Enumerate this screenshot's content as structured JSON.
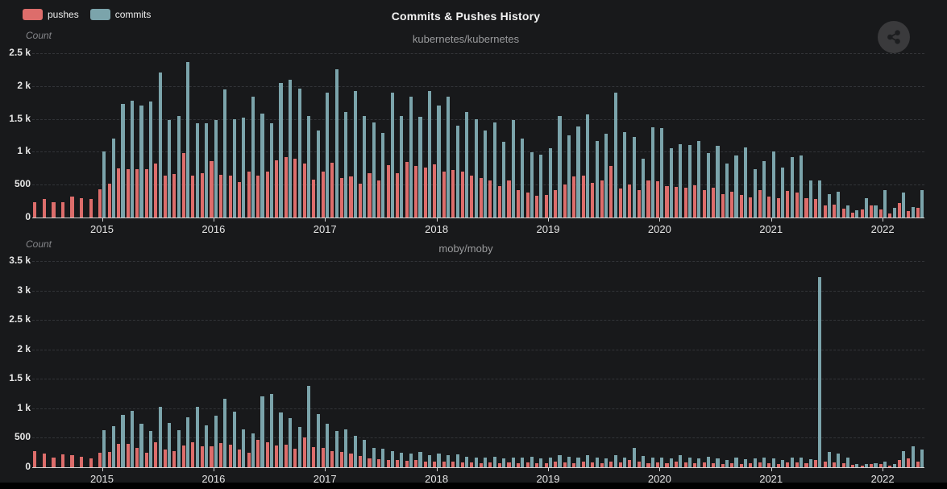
{
  "header": {
    "title": "Commits & Pushes History"
  },
  "legend": {
    "pushes_label": "pushes",
    "commits_label": "commits"
  },
  "colors": {
    "pushes": "#dd6d6b",
    "commits": "#7ba4ab",
    "background": "#18191b",
    "gridline": "#323438",
    "axis": "#cfcfcf"
  },
  "icons": {
    "share": "share-icon"
  },
  "months": [
    "2014-06",
    "2014-07",
    "2014-08",
    "2014-09",
    "2014-10",
    "2014-11",
    "2014-12",
    "2015-01",
    "2015-02",
    "2015-03",
    "2015-04",
    "2015-05",
    "2015-06",
    "2015-07",
    "2015-08",
    "2015-09",
    "2015-10",
    "2015-11",
    "2015-12",
    "2016-01",
    "2016-02",
    "2016-03",
    "2016-04",
    "2016-05",
    "2016-06",
    "2016-07",
    "2016-08",
    "2016-09",
    "2016-10",
    "2016-11",
    "2016-12",
    "2017-01",
    "2017-02",
    "2017-03",
    "2017-04",
    "2017-05",
    "2017-06",
    "2017-07",
    "2017-08",
    "2017-09",
    "2017-10",
    "2017-11",
    "2017-12",
    "2018-01",
    "2018-02",
    "2018-03",
    "2018-04",
    "2018-05",
    "2018-06",
    "2018-07",
    "2018-08",
    "2018-09",
    "2018-10",
    "2018-11",
    "2018-12",
    "2019-01",
    "2019-02",
    "2019-03",
    "2019-04",
    "2019-05",
    "2019-06",
    "2019-07",
    "2019-08",
    "2019-09",
    "2019-10",
    "2019-11",
    "2019-12",
    "2020-01",
    "2020-02",
    "2020-03",
    "2020-04",
    "2020-05",
    "2020-06",
    "2020-07",
    "2020-08",
    "2020-09",
    "2020-10",
    "2020-11",
    "2020-12",
    "2021-01",
    "2021-02",
    "2021-03",
    "2021-04",
    "2021-05",
    "2021-06",
    "2021-07",
    "2021-08",
    "2021-09",
    "2021-10",
    "2021-11",
    "2021-12",
    "2022-01",
    "2022-02",
    "2022-03",
    "2022-04",
    "2022-05"
  ],
  "chart_data": [
    {
      "type": "bar",
      "subtitle": "kubernetes/kubernetes",
      "count_label": "Count",
      "ylabel": "Count",
      "ymax": 2500,
      "yticks": [
        {
          "label": "2.5 k",
          "value": 2500
        },
        {
          "label": "2 k",
          "value": 2000
        },
        {
          "label": "1.5 k",
          "value": 1500
        },
        {
          "label": "1 k",
          "value": 1000
        },
        {
          "label": "500",
          "value": 500
        },
        {
          "label": "0",
          "value": 0
        }
      ],
      "xtick_years": [
        "2015",
        "2016",
        "2017",
        "2018",
        "2019",
        "2020",
        "2021",
        "2022"
      ],
      "legend_position": "top-left",
      "grid": true,
      "series": [
        {
          "name": "pushes",
          "values": [
            230,
            280,
            230,
            230,
            320,
            300,
            280,
            430,
            520,
            750,
            740,
            730,
            730,
            820,
            640,
            660,
            980,
            640,
            670,
            860,
            650,
            640,
            540,
            700,
            640,
            700,
            870,
            920,
            890,
            820,
            580,
            700,
            840,
            600,
            630,
            520,
            670,
            560,
            800,
            670,
            850,
            780,
            760,
            810,
            700,
            720,
            700,
            640,
            600,
            560,
            480,
            560,
            420,
            380,
            330,
            340,
            420,
            500,
            620,
            640,
            530,
            560,
            780,
            440,
            500,
            420,
            560,
            550,
            480,
            470,
            450,
            490,
            420,
            460,
            350,
            390,
            340,
            310,
            420,
            320,
            300,
            400,
            380,
            300,
            280,
            180,
            200,
            140,
            80,
            120,
            180,
            120,
            60,
            220,
            100,
            150
          ]
        },
        {
          "name": "commits",
          "values": [
            0,
            0,
            0,
            0,
            0,
            0,
            0,
            1010,
            1200,
            1730,
            1780,
            1700,
            1770,
            2210,
            1480,
            1540,
            2370,
            1430,
            1440,
            1480,
            1950,
            1500,
            1520,
            1840,
            1580,
            1430,
            2050,
            2100,
            1960,
            1540,
            1320,
            1900,
            2250,
            1600,
            1920,
            1540,
            1450,
            1290,
            1900,
            1550,
            1840,
            1530,
            1920,
            1700,
            1840,
            1400,
            1600,
            1500,
            1330,
            1450,
            1150,
            1480,
            1200,
            990,
            960,
            1060,
            1540,
            1250,
            1390,
            1570,
            1160,
            1270,
            1900,
            1300,
            1230,
            900,
            1370,
            1360,
            1060,
            1120,
            1100,
            1170,
            980,
            1090,
            820,
            950,
            1070,
            730,
            860,
            1010,
            760,
            920,
            940,
            570,
            560,
            350,
            390,
            180,
            110,
            290,
            180,
            420,
            150,
            380,
            160,
            420
          ]
        }
      ]
    },
    {
      "type": "bar",
      "subtitle": "moby/moby",
      "count_label": "Count",
      "ylabel": "Count",
      "ymax": 3500,
      "yticks": [
        {
          "label": "3.5 k",
          "value": 3500
        },
        {
          "label": "3 k",
          "value": 3000
        },
        {
          "label": "2.5 k",
          "value": 2500
        },
        {
          "label": "2 k",
          "value": 2000
        },
        {
          "label": "1.5 k",
          "value": 1500
        },
        {
          "label": "1 k",
          "value": 1000
        },
        {
          "label": "500",
          "value": 500
        },
        {
          "label": "0",
          "value": 0
        }
      ],
      "xtick_years": [
        "2015",
        "2016",
        "2017",
        "2018",
        "2019",
        "2020",
        "2021",
        "2022"
      ],
      "legend_position": "top-left",
      "grid": true,
      "series": [
        {
          "name": "pushes",
          "values": [
            280,
            230,
            170,
            220,
            210,
            180,
            150,
            250,
            260,
            400,
            400,
            330,
            250,
            430,
            300,
            280,
            370,
            420,
            350,
            360,
            410,
            380,
            300,
            250,
            460,
            420,
            370,
            380,
            310,
            510,
            340,
            330,
            280,
            260,
            230,
            190,
            150,
            140,
            130,
            120,
            110,
            120,
            100,
            100,
            90,
            100,
            80,
            80,
            70,
            80,
            70,
            80,
            70,
            80,
            70,
            70,
            90,
            80,
            70,
            90,
            80,
            70,
            90,
            80,
            120,
            90,
            70,
            80,
            70,
            90,
            80,
            70,
            80,
            70,
            60,
            70,
            60,
            70,
            80,
            70,
            60,
            80,
            80,
            70,
            120,
            90,
            80,
            70,
            40,
            30,
            50,
            50,
            30,
            120,
            150,
            100
          ]
        },
        {
          "name": "commits",
          "values": [
            0,
            0,
            0,
            0,
            0,
            0,
            0,
            630,
            700,
            890,
            960,
            740,
            620,
            1020,
            750,
            630,
            850,
            1030,
            710,
            870,
            1160,
            950,
            640,
            570,
            1200,
            1240,
            930,
            830,
            680,
            1380,
            900,
            740,
            620,
            650,
            540,
            460,
            330,
            310,
            280,
            250,
            230,
            260,
            210,
            230,
            200,
            220,
            180,
            170,
            160,
            180,
            150,
            170,
            160,
            180,
            150,
            160,
            200,
            180,
            160,
            210,
            170,
            150,
            200,
            170,
            330,
            190,
            160,
            170,
            150,
            200,
            170,
            150,
            180,
            150,
            130,
            160,
            140,
            150,
            170,
            150,
            130,
            160,
            170,
            140,
            3230,
            260,
            230,
            160,
            60,
            50,
            70,
            90,
            60,
            280,
            350,
            300
          ]
        }
      ]
    }
  ]
}
